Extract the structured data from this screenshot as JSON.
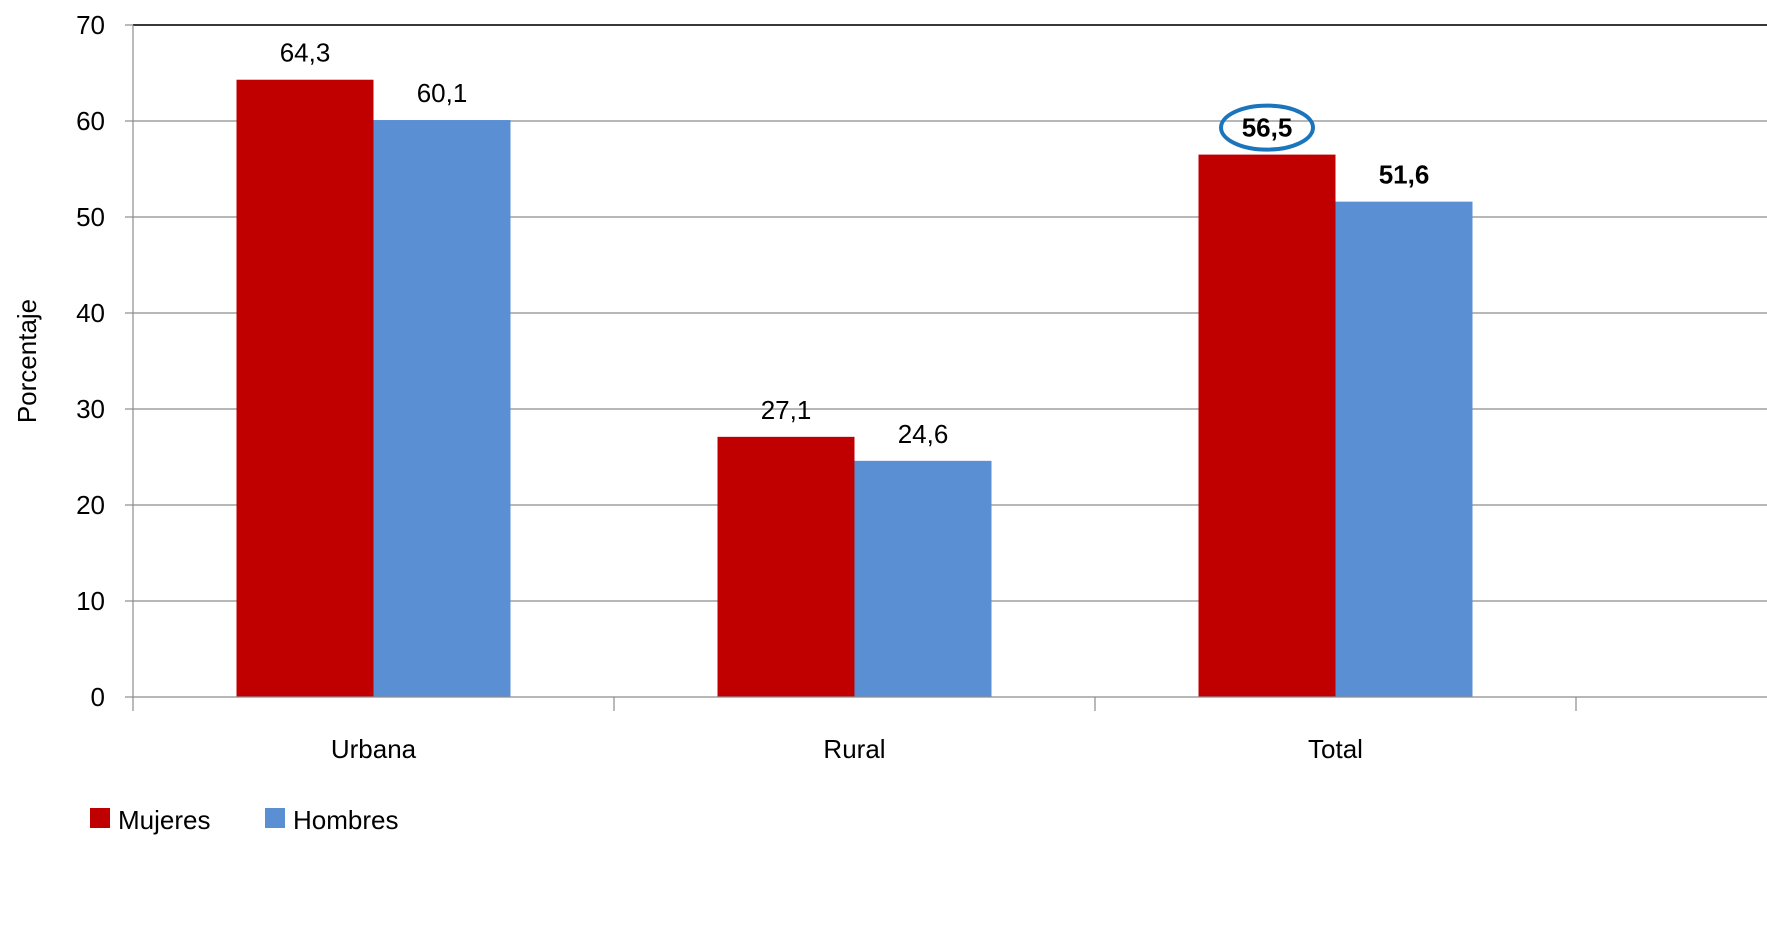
{
  "chart_data": {
    "type": "bar",
    "title": "",
    "xlabel": "",
    "ylabel": "Porcentaje",
    "ylim": [
      0,
      70
    ],
    "yticks": [
      0,
      10,
      20,
      30,
      40,
      50,
      60,
      70
    ],
    "grid": true,
    "legend_position": "bottom-left",
    "categories": [
      "Urbana",
      "Rural",
      "Total"
    ],
    "series": [
      {
        "name": "Mujeres",
        "color": "#C00000",
        "values": [
          64.3,
          27.1,
          56.5
        ],
        "labels": [
          "64,3",
          "27,1",
          "56,5"
        ]
      },
      {
        "name": "Hombres",
        "color": "#5B8FD4",
        "values": [
          60.1,
          24.6,
          51.6
        ],
        "labels": [
          "60,1",
          "24,6",
          "51,6"
        ]
      }
    ],
    "bold_labels": [
      {
        "category": "Total",
        "series": "Mujeres"
      },
      {
        "category": "Total",
        "series": "Hombres"
      }
    ],
    "highlight": {
      "category": "Total",
      "series": "Mujeres",
      "shape": "ellipse",
      "color": "#1B75BC"
    }
  }
}
